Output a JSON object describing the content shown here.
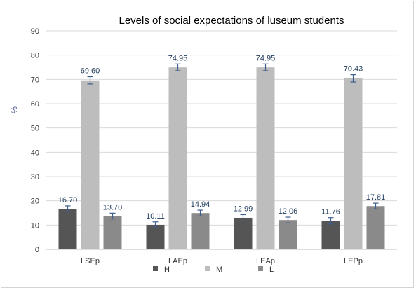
{
  "chart_data": {
    "type": "bar",
    "title": "Levels of social expectations of luseum students",
    "ylabel": "%",
    "xlabel": "",
    "ylim": [
      0,
      90
    ],
    "yticks": [
      0,
      10,
      20,
      30,
      40,
      50,
      60,
      70,
      80,
      90
    ],
    "grid": true,
    "legend_position": "bottom",
    "categories": [
      "LSEp",
      "LAEp",
      "LEAp",
      "LEPp"
    ],
    "series": [
      {
        "name": "H",
        "values": [
          16.7,
          10.11,
          12.99,
          11.76
        ],
        "labels": [
          "16.70",
          "10.11",
          "12.99",
          "11.76"
        ],
        "errors": [
          1.2,
          1.2,
          1.3,
          1.3
        ],
        "color": "#555555"
      },
      {
        "name": "M",
        "values": [
          69.6,
          74.95,
          74.95,
          70.43
        ],
        "labels": [
          "69.60",
          "74.95",
          "74.95",
          "70.43"
        ],
        "errors": [
          1.5,
          1.4,
          1.4,
          1.5
        ],
        "color": "#bdbdbd"
      },
      {
        "name": "L",
        "values": [
          13.7,
          14.94,
          12.06,
          17.81
        ],
        "labels": [
          "13.70",
          "14.94",
          "12.06",
          "17.81"
        ],
        "errors": [
          1.2,
          1.2,
          1.2,
          1.2
        ],
        "color": "#8a8a8a"
      }
    ]
  }
}
